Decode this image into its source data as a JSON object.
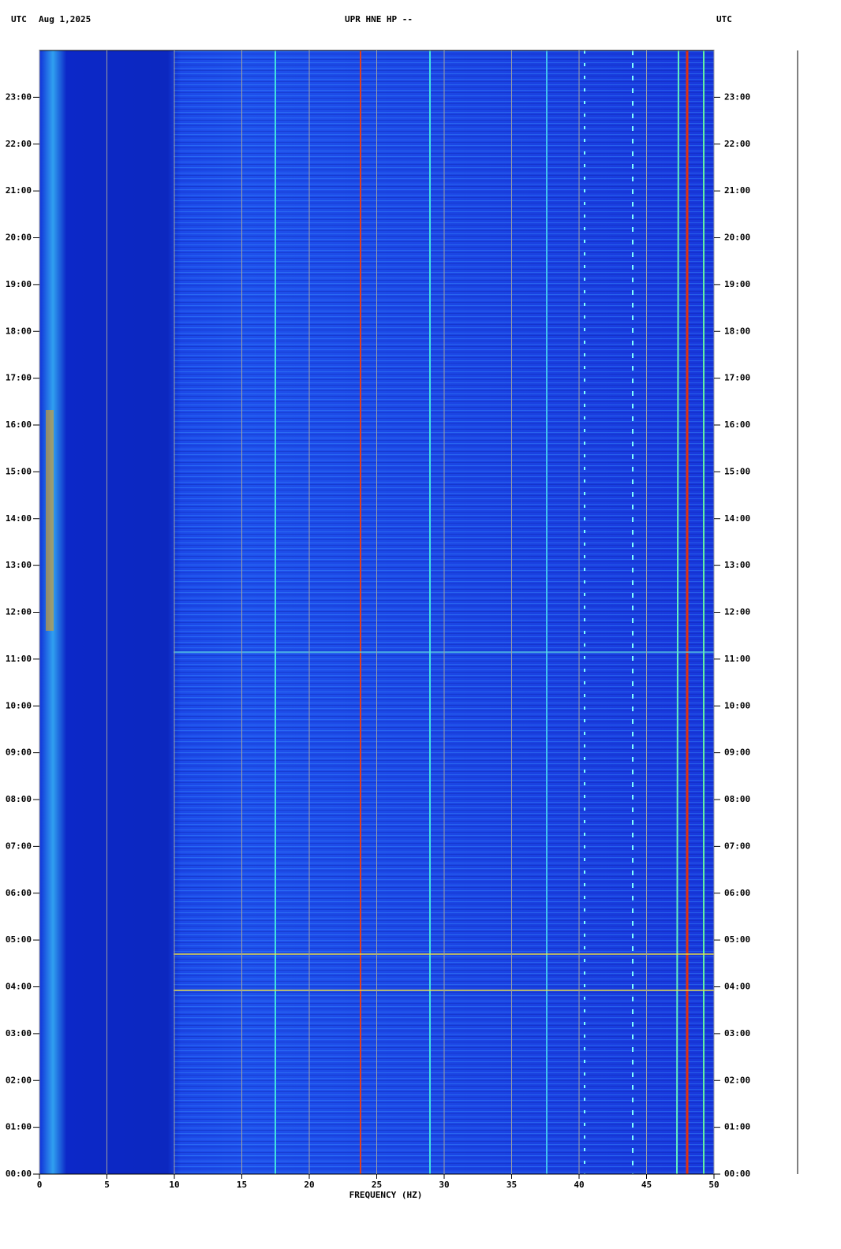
{
  "chart_data": {
    "type": "spectrogram",
    "title": "UPR HNE HP --",
    "timezone_left": "UTC",
    "date": "Aug 1,2025",
    "timezone_right": "UTC",
    "x_label": "FREQUENCY (HZ)",
    "xlim": [
      0,
      50
    ],
    "xticks": [
      0,
      5,
      10,
      15,
      20,
      25,
      30,
      35,
      40,
      45,
      50
    ],
    "ylim": [
      0,
      24
    ],
    "yticks": [
      {
        "value": 0,
        "label": "00:00"
      },
      {
        "value": 1,
        "label": "01:00"
      },
      {
        "value": 2,
        "label": "02:00"
      },
      {
        "value": 3,
        "label": "03:00"
      },
      {
        "value": 4,
        "label": "04:00"
      },
      {
        "value": 5,
        "label": "05:00"
      },
      {
        "value": 6,
        "label": "06:00"
      },
      {
        "value": 7,
        "label": "07:00"
      },
      {
        "value": 8,
        "label": "08:00"
      },
      {
        "value": 9,
        "label": "09:00"
      },
      {
        "value": 10,
        "label": "10:00"
      },
      {
        "value": 11,
        "label": "11:00"
      },
      {
        "value": 12,
        "label": "12:00"
      },
      {
        "value": 13,
        "label": "13:00"
      },
      {
        "value": 14,
        "label": "14:00"
      },
      {
        "value": 15,
        "label": "15:00"
      },
      {
        "value": 16,
        "label": "16:00"
      },
      {
        "value": 17,
        "label": "17:00"
      },
      {
        "value": 18,
        "label": "18:00"
      },
      {
        "value": 19,
        "label": "19:00"
      },
      {
        "value": 20,
        "label": "20:00"
      },
      {
        "value": 21,
        "label": "21:00"
      },
      {
        "value": 22,
        "label": "22:00"
      },
      {
        "value": 23,
        "label": "23:00"
      }
    ],
    "grid": true
  }
}
